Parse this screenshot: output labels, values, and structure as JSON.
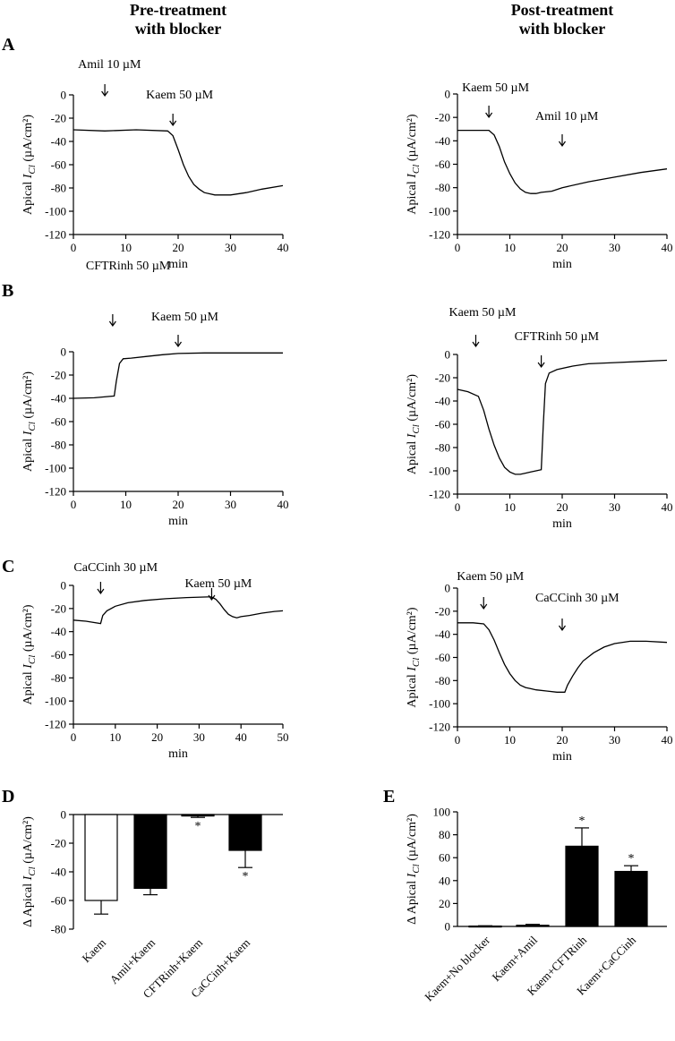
{
  "headers": {
    "left": [
      "Pre-treatment",
      "with blocker"
    ],
    "right": [
      "Post-treatment",
      "with blocker"
    ]
  },
  "chart_data": [
    {
      "id": "A1",
      "panel": "A",
      "type": "line",
      "xlabel": "min",
      "ylabel": "Apical I_Cl (µA/cm²)",
      "xlim": [
        0,
        40
      ],
      "ylim": [
        -120,
        0
      ],
      "xticks": [
        0,
        10,
        20,
        30,
        40
      ],
      "yticks": [
        0,
        -20,
        -40,
        -60,
        -80,
        -100,
        -120
      ],
      "series": [
        {
          "name": "Apical ICl",
          "x": [
            0,
            6,
            12,
            18,
            19,
            20,
            21,
            22,
            23,
            24,
            25,
            26,
            27,
            28,
            30,
            33,
            36,
            40
          ],
          "y": [
            -30,
            -31,
            -30,
            -31,
            -35,
            -47,
            -60,
            -70,
            -77,
            -81,
            -84,
            -85,
            -86,
            -86,
            -86,
            -84,
            -81,
            -78
          ]
        }
      ],
      "annotations": [
        {
          "text": "Amil 10 µM",
          "x": 6,
          "level": 1
        },
        {
          "text": "Kaem 50 µM",
          "x": 19,
          "level": 2
        }
      ]
    },
    {
      "id": "A2",
      "panel": "A",
      "type": "line",
      "xlabel": "min",
      "ylabel": "Apical I_Cl (µA/cm²)",
      "xlim": [
        0,
        40
      ],
      "ylim": [
        -120,
        0
      ],
      "xticks": [
        0,
        10,
        20,
        30,
        40
      ],
      "yticks": [
        0,
        -20,
        -40,
        -60,
        -80,
        -100,
        -120
      ],
      "series": [
        {
          "name": "Apical ICl",
          "x": [
            0,
            3,
            6,
            7,
            8,
            9,
            10,
            11,
            12,
            13,
            14,
            15,
            16,
            18,
            20,
            25,
            30,
            35,
            40
          ],
          "y": [
            -31,
            -31,
            -31,
            -35,
            -45,
            -58,
            -68,
            -76,
            -81,
            -84,
            -85,
            -85,
            -84,
            -83,
            -80,
            -75,
            -71,
            -67,
            -64
          ]
        }
      ],
      "annotations": [
        {
          "text": "Kaem 50 µM",
          "x": 6,
          "level": 1
        },
        {
          "text": "Amil 10 µM",
          "x": 20,
          "level": 2
        }
      ]
    },
    {
      "id": "B1",
      "panel": "B",
      "type": "line",
      "xlabel": "min",
      "ylabel": "Apical I_Cl (µA/cm²)",
      "xlim": [
        0,
        40
      ],
      "ylim": [
        -120,
        0
      ],
      "xticks": [
        0,
        10,
        20,
        30,
        40
      ],
      "yticks": [
        0,
        -20,
        -40,
        -60,
        -80,
        -100,
        -120
      ],
      "series": [
        {
          "name": "Apical ICl",
          "x": [
            0,
            4,
            7.8,
            8.2,
            8.8,
            9.5,
            11,
            14,
            17,
            20,
            25,
            30,
            35,
            40
          ],
          "y": [
            -40,
            -39.5,
            -38,
            -25,
            -10,
            -6,
            -5.5,
            -4,
            -2.5,
            -1.5,
            -1,
            -1,
            -1,
            -1
          ]
        }
      ],
      "annotations": [
        {
          "text": "CFTRinh 50 µM",
          "x": 7.5,
          "level": 1
        },
        {
          "text": "Kaem 50 µM",
          "x": 20,
          "level": 2
        }
      ]
    },
    {
      "id": "B2",
      "panel": "B",
      "type": "line",
      "xlabel": "min",
      "ylabel": "Apical I_Cl (µA/cm²)",
      "xlim": [
        0,
        40
      ],
      "ylim": [
        -120,
        0
      ],
      "xticks": [
        0,
        10,
        20,
        30,
        40
      ],
      "yticks": [
        0,
        -20,
        -40,
        -60,
        -80,
        -100,
        -120
      ],
      "series": [
        {
          "name": "Apical ICl",
          "x": [
            0,
            2,
            4,
            5,
            6,
            7,
            8,
            9,
            10,
            11,
            12,
            13,
            14,
            15,
            16,
            16.4,
            16.8,
            17.5,
            19,
            22,
            25,
            30,
            35,
            40
          ],
          "y": [
            -30,
            -32,
            -36,
            -48,
            -64,
            -78,
            -89,
            -97,
            -101,
            -103,
            -103,
            -102,
            -101,
            -100,
            -99,
            -60,
            -25,
            -16,
            -13,
            -10,
            -8,
            -7,
            -6,
            -5
          ]
        }
      ],
      "annotations": [
        {
          "text": "Kaem 50 µM",
          "x": 3.5,
          "level": 1
        },
        {
          "text": "CFTRinh 50 µM",
          "x": 16,
          "level": 2
        }
      ]
    },
    {
      "id": "C1",
      "panel": "C",
      "type": "line",
      "xlabel": "min",
      "ylabel": "Apical I_Cl (µA/cm²)",
      "xlim": [
        0,
        50
      ],
      "ylim": [
        -120,
        0
      ],
      "xticks": [
        0,
        10,
        20,
        30,
        40,
        50
      ],
      "yticks": [
        0,
        -20,
        -40,
        -60,
        -80,
        -100,
        -120
      ],
      "series": [
        {
          "name": "Apical ICl",
          "x": [
            0,
            3,
            6.5,
            7,
            8,
            10,
            13,
            17,
            22,
            27,
            32,
            33,
            34,
            35,
            36,
            37,
            38,
            39,
            40,
            42,
            45,
            48,
            50
          ],
          "y": [
            -30,
            -31,
            -33,
            -26,
            -22,
            -18,
            -15,
            -13,
            -11.5,
            -10.5,
            -10,
            -10,
            -12,
            -16,
            -21,
            -25,
            -27,
            -28,
            -27,
            -26,
            -24,
            -22.5,
            -22
          ]
        }
      ],
      "annotations": [
        {
          "text": "CaCCinh 30 µM",
          "x": 6.5,
          "level": 2
        },
        {
          "text": "Kaem 50 µM",
          "x": 33,
          "level": 1
        }
      ]
    },
    {
      "id": "C2",
      "panel": "C",
      "type": "line",
      "xlabel": "min",
      "ylabel": "Apical I_Cl (µA/cm²)",
      "xlim": [
        0,
        40
      ],
      "ylim": [
        -120,
        0
      ],
      "xticks": [
        0,
        10,
        20,
        30,
        40
      ],
      "yticks": [
        0,
        -20,
        -40,
        -60,
        -80,
        -100,
        -120
      ],
      "series": [
        {
          "name": "Apical ICl",
          "x": [
            0,
            3,
            5,
            6,
            7,
            8,
            9,
            10,
            11,
            12,
            13,
            14,
            15,
            17,
            19,
            20.5,
            21,
            22,
            23,
            24,
            26,
            28,
            30,
            33,
            36,
            40
          ],
          "y": [
            -30,
            -30,
            -31,
            -36,
            -45,
            -56,
            -66,
            -74,
            -80,
            -84,
            -86,
            -87,
            -88,
            -89,
            -90,
            -90,
            -84,
            -76,
            -69,
            -63,
            -56,
            -51,
            -48,
            -46,
            -46,
            -47
          ]
        }
      ],
      "annotations": [
        {
          "text": "Kaem 50 µM",
          "x": 5,
          "level": 1
        },
        {
          "text": "CaCCinh 30 µM",
          "x": 20,
          "level": 2
        }
      ]
    },
    {
      "id": "D",
      "panel": "D",
      "type": "bar",
      "ylabel": "Δ Apical I_Cl (µA/cm²)",
      "ylim": [
        -80,
        0
      ],
      "yticks": [
        0,
        -20,
        -40,
        -60,
        -80
      ],
      "categories": [
        "Kaem",
        "Amil+Kaem",
        "CFTRinh+Kaem",
        "CaCCinh+Kaem"
      ],
      "values": [
        -60,
        -51.5,
        -1,
        -25
      ],
      "errors": [
        9.5,
        4.5,
        1,
        12
      ],
      "fills": [
        "#ffffff",
        "#000000",
        "#000000",
        "#000000"
      ],
      "significance": [
        "",
        "",
        "*",
        "*"
      ]
    },
    {
      "id": "E",
      "panel": "E",
      "type": "bar",
      "ylabel": "Δ Apical I_Cl (µA/cm²)",
      "ylim": [
        0,
        100
      ],
      "yticks": [
        0,
        20,
        40,
        60,
        80,
        100
      ],
      "categories": [
        "Kaem+No blocker",
        "Kaem+Amil",
        "Kaem+CFTRinh",
        "Kaem+CaCCinh"
      ],
      "values": [
        0.3,
        1,
        70,
        48
      ],
      "errors": [
        0.3,
        0.8,
        16,
        5
      ],
      "fills": [
        "#000000",
        "#000000",
        "#000000",
        "#000000"
      ],
      "significance": [
        "",
        "",
        "*",
        "*"
      ]
    }
  ]
}
